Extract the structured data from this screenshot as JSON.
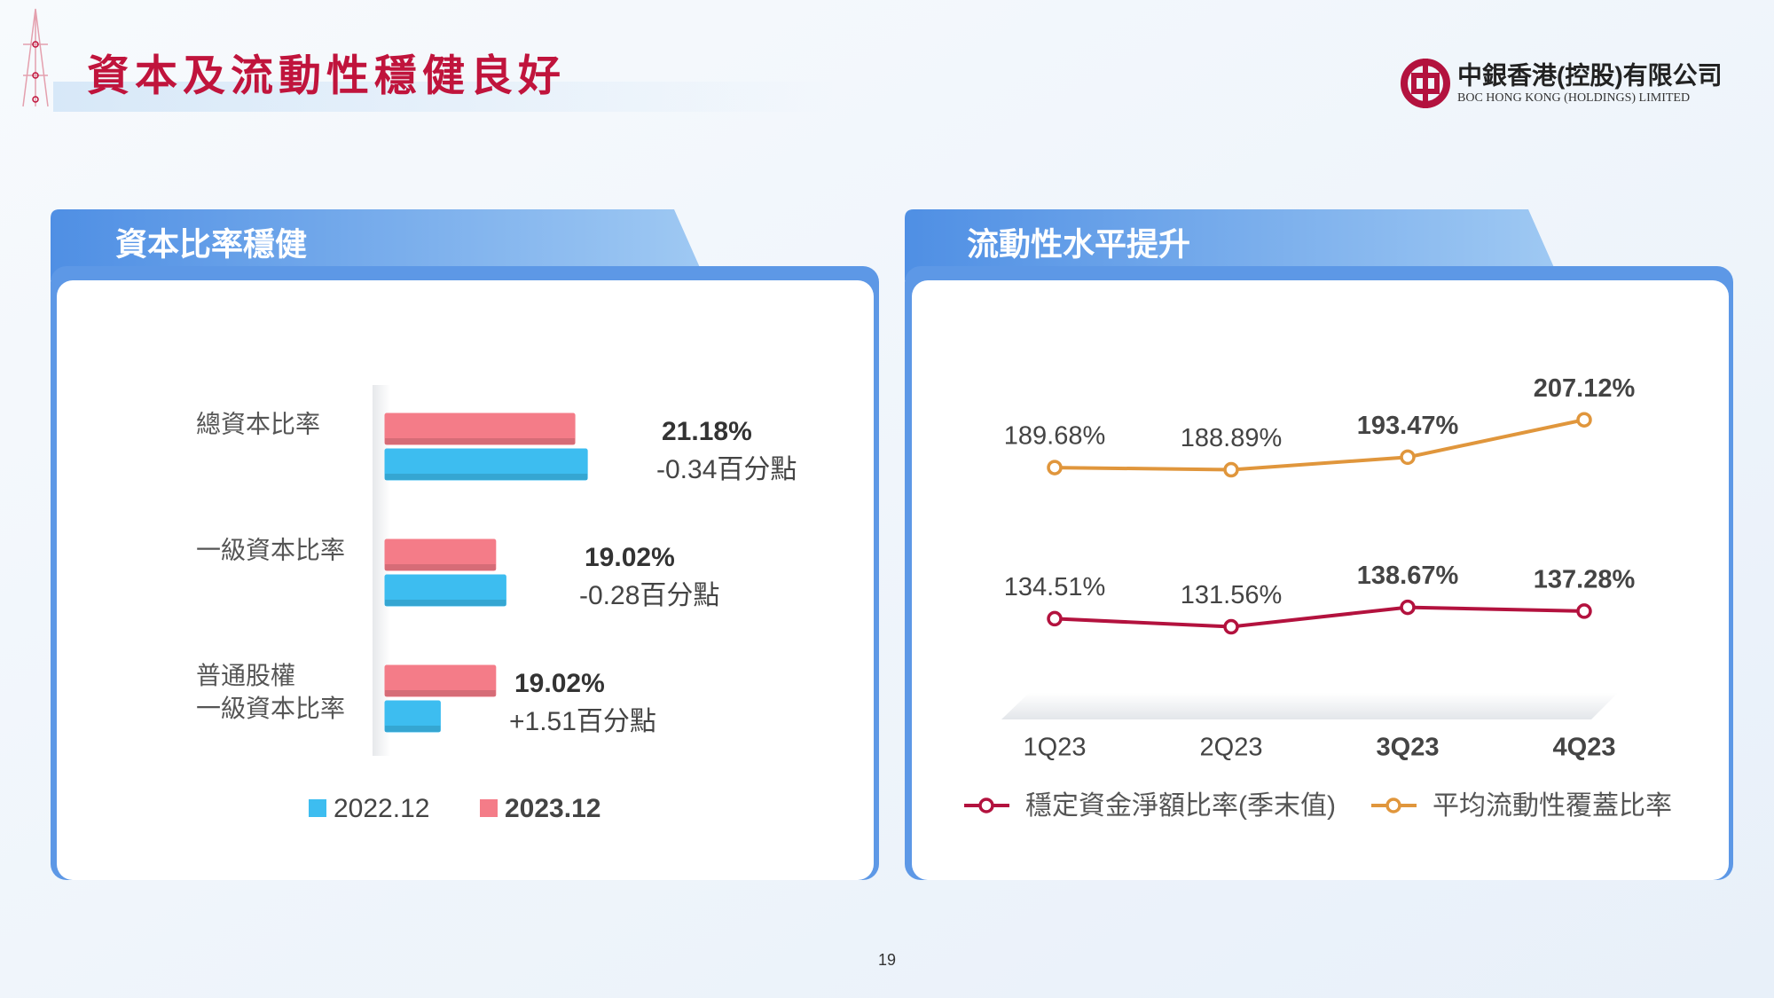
{
  "title": "資本及流動性穩健良好",
  "logo": {
    "name": "中銀香港(控股)有限公司",
    "name_en": "BOC HONG KONG (HOLDINGS) LIMITED"
  },
  "page_number": "19",
  "chart_data": [
    {
      "type": "bar",
      "orientation": "horizontal",
      "title": "資本比率穩健",
      "categories": [
        "總資本比率",
        "一級資本比率",
        "普通股權\n一級資本比率"
      ],
      "series": [
        {
          "name": "2022.12",
          "color": "#3dbdf0",
          "values": [
            21.52,
            19.3,
            17.51
          ]
        },
        {
          "name": "2023.12",
          "color": "#f47c88",
          "values": [
            21.18,
            19.02,
            19.02
          ],
          "value_labels": [
            "21.18%",
            "19.02%",
            "19.02%"
          ]
        }
      ],
      "annotations": [
        "-0.34百分點",
        "-0.28百分點",
        "+1.51百分點"
      ],
      "xlim": [
        16,
        22
      ]
    },
    {
      "type": "line",
      "title": "流動性水平提升",
      "categories": [
        "1Q23",
        "2Q23",
        "3Q23",
        "4Q23"
      ],
      "series": [
        {
          "name": "穩定資金淨額比率(季末值)",
          "color": "#b3123e",
          "values": [
            134.51,
            131.56,
            138.67,
            137.28
          ],
          "value_labels": [
            "134.51%",
            "131.56%",
            "138.67%",
            "137.28%"
          ]
        },
        {
          "name": "平均流動性覆蓋比率",
          "color": "#e0963c",
          "values": [
            189.68,
            188.89,
            193.47,
            207.12
          ],
          "value_labels": [
            "189.68%",
            "188.89%",
            "193.47%",
            "207.12%"
          ]
        }
      ],
      "ylim": [
        100,
        225
      ]
    }
  ]
}
